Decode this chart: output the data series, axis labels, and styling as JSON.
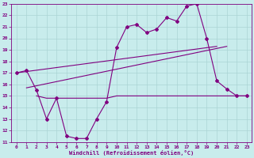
{
  "bg_color": "#c8ecec",
  "grid_color": "#aad4d4",
  "line_color": "#800080",
  "xlabel": "Windchill (Refroidissement éolien,°C)",
  "xlim": [
    -0.5,
    23.5
  ],
  "ylim": [
    11,
    23
  ],
  "yticks": [
    11,
    12,
    13,
    14,
    15,
    16,
    17,
    18,
    19,
    20,
    21,
    22,
    23
  ],
  "xticks": [
    0,
    1,
    2,
    3,
    4,
    5,
    6,
    7,
    8,
    9,
    10,
    11,
    12,
    13,
    14,
    15,
    16,
    17,
    18,
    19,
    20,
    21,
    22,
    23
  ],
  "hours": [
    0,
    1,
    2,
    3,
    4,
    5,
    6,
    7,
    8,
    9,
    10,
    11,
    12,
    13,
    14,
    15,
    16,
    17,
    18,
    19,
    20,
    21,
    22,
    23
  ],
  "temp_main": [
    17.0,
    17.2,
    15.5,
    13.0,
    14.8,
    11.5,
    11.3,
    11.3,
    13.0,
    14.5,
    19.2,
    21.0,
    21.2,
    20.5,
    20.8,
    21.8,
    21.5,
    22.8,
    23.0,
    20.0,
    16.3,
    15.6,
    15.0,
    15.0
  ],
  "flat_x": [
    2,
    3,
    4,
    5,
    6,
    7,
    8,
    9,
    10,
    11,
    12,
    13,
    14,
    15,
    16,
    17,
    18,
    19,
    20,
    21,
    22,
    23
  ],
  "flat_y": [
    15.0,
    14.8,
    14.8,
    14.8,
    14.8,
    14.8,
    14.8,
    14.8,
    15.0,
    15.0,
    15.0,
    15.0,
    15.0,
    15.0,
    15.0,
    15.0,
    15.0,
    15.0,
    15.0,
    15.0,
    15.0,
    15.0
  ],
  "trend1_x": [
    0,
    20
  ],
  "trend1_y": [
    17.0,
    19.3
  ],
  "trend2_x": [
    1,
    21
  ],
  "trend2_y": [
    15.7,
    19.3
  ],
  "figsize": [
    3.2,
    2.0
  ],
  "dpi": 100
}
